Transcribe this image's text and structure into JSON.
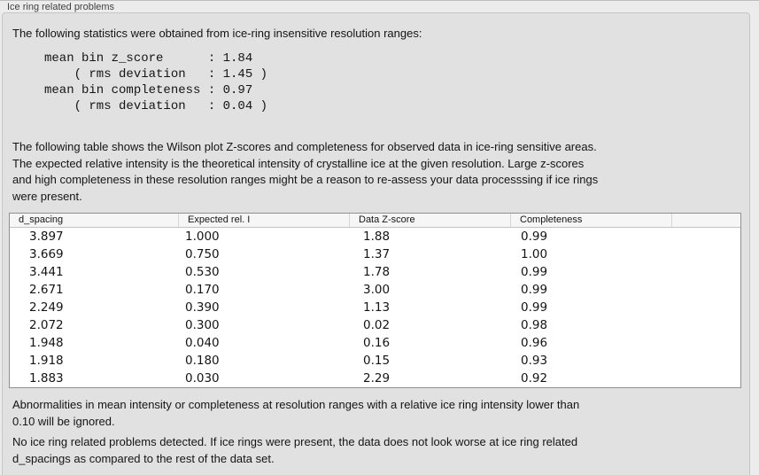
{
  "panel": {
    "title": "Ice ring related problems"
  },
  "sections": {
    "stats_intro": "The following statistics were obtained from ice-ring insensitive resolution ranges:",
    "stats_lines": [
      "mean bin z_score      : 1.84",
      "    ( rms deviation   : 1.45 )",
      "mean bin completeness : 0.97",
      "    ( rms deviation   : 0.04 )"
    ],
    "table_description": "The following table shows the Wilson plot Z-scores and completeness for observed data in ice-ring sensitive areas.\nThe expected relative intensity is the theoretical intensity of crystalline ice at the given resolution. Large z-scores\nand high completeness in these resolution ranges might be a reason to re-assess your data processsing if ice rings\nwere present.",
    "ignore_note": "Abnormalities in mean intensity or completeness at resolution ranges with a relative ice ring intensity lower than\n0.10 will be ignored.",
    "conclusion": "No ice ring related problems detected. If ice rings were present, the data does not look worse at ice ring related\nd_spacings as compared to the rest of the data set."
  },
  "table": {
    "columns": [
      "d_spacing",
      "Expected rel. I",
      "Data Z-score",
      "Completeness",
      ""
    ],
    "rows": [
      [
        "3.897",
        "1.000",
        "1.88",
        "0.99"
      ],
      [
        "3.669",
        "0.750",
        "1.37",
        "1.00"
      ],
      [
        "3.441",
        "0.530",
        "1.78",
        "0.99"
      ],
      [
        "2.671",
        "0.170",
        "3.00",
        "0.99"
      ],
      [
        "2.249",
        "0.390",
        "1.13",
        "0.99"
      ],
      [
        "2.072",
        "0.300",
        "0.02",
        "0.98"
      ],
      [
        "1.948",
        "0.040",
        "0.16",
        "0.96"
      ],
      [
        "1.918",
        "0.180",
        "0.15",
        "0.93"
      ],
      [
        "1.883",
        "0.030",
        "2.29",
        "0.92"
      ]
    ]
  },
  "colors": {
    "outer_bg": "#ECECEC",
    "panel_bg": "#E1E1E1",
    "panel_border": "#C6C6C6",
    "title_color": "#3F3F3F",
    "table_border": "#8F8F8F",
    "table_header_bg": "#F6F6F6"
  }
}
